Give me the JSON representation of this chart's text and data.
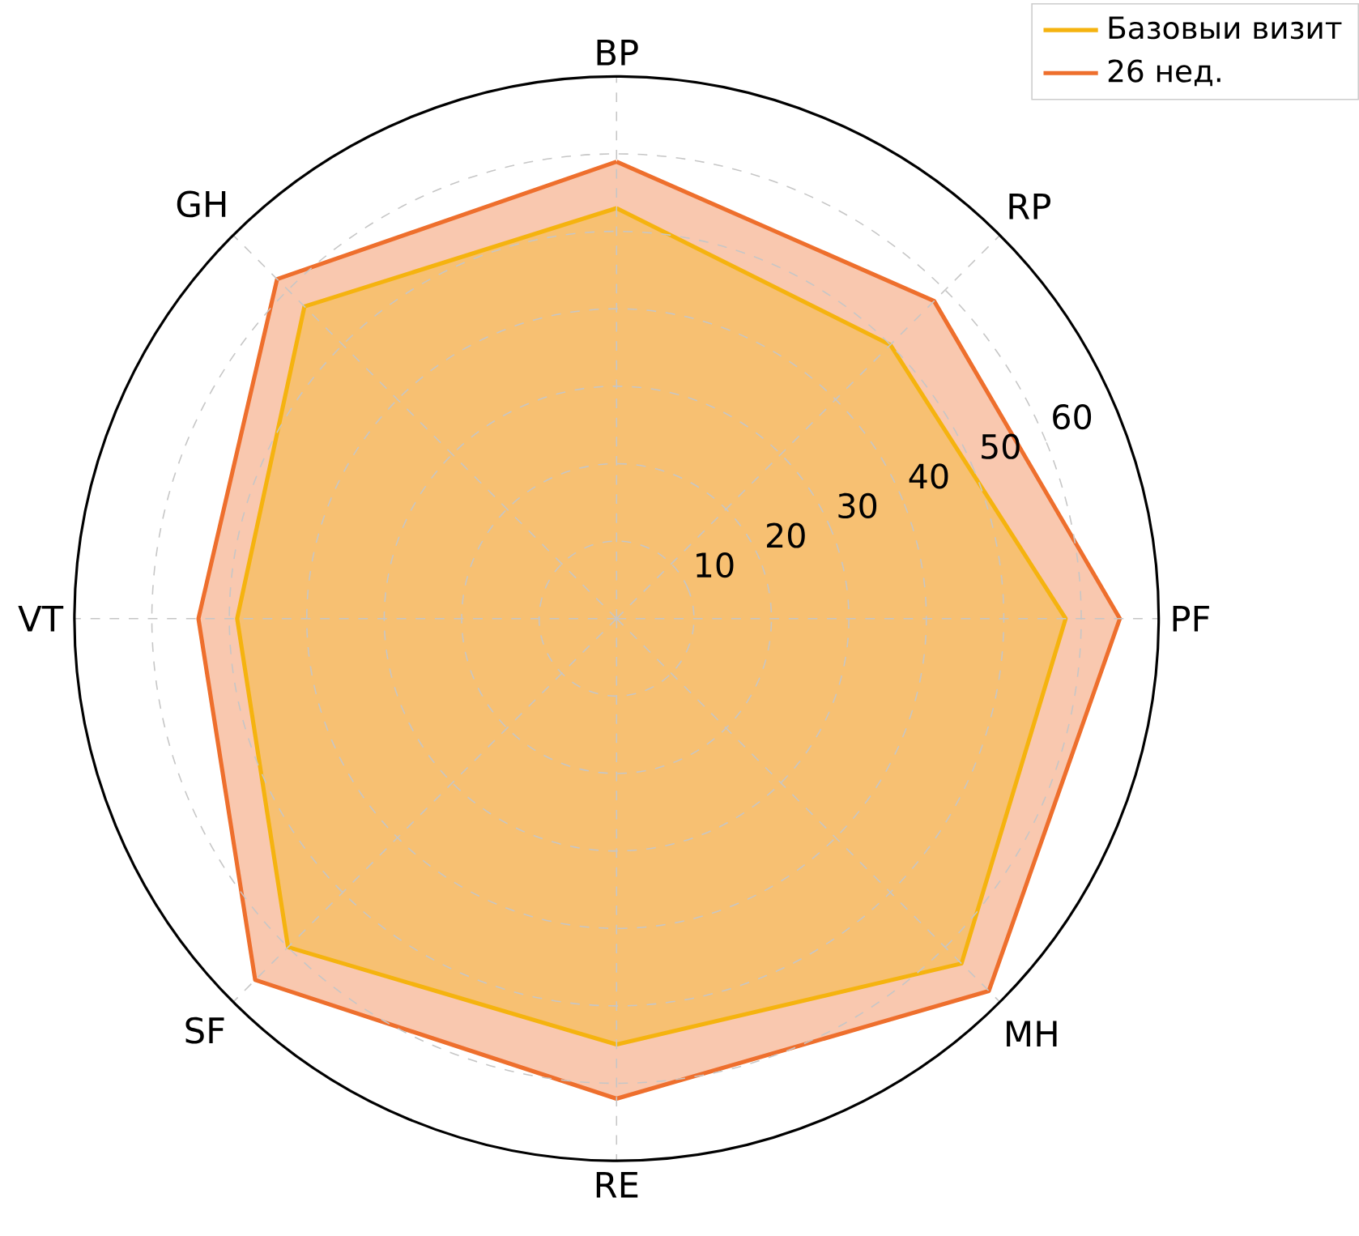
{
  "chart_data": {
    "type": "radar",
    "categories": [
      "BP",
      "RP",
      "PF",
      "MH",
      "RE",
      "SF",
      "VT",
      "GH"
    ],
    "series": [
      {
        "name": "Базовыи визит",
        "color": "#f5b30f",
        "values": [
          53,
          50,
          58,
          63,
          55,
          60,
          49,
          57
        ]
      },
      {
        "name": "26 нед.",
        "color": "#ee6f2d",
        "values": [
          59,
          58,
          65,
          68,
          62,
          66,
          54,
          62
        ]
      }
    ],
    "ylim": [
      0,
      70
    ],
    "yticks": [
      10,
      20,
      30,
      40,
      50,
      60
    ],
    "grid": true,
    "legend": "top right"
  }
}
